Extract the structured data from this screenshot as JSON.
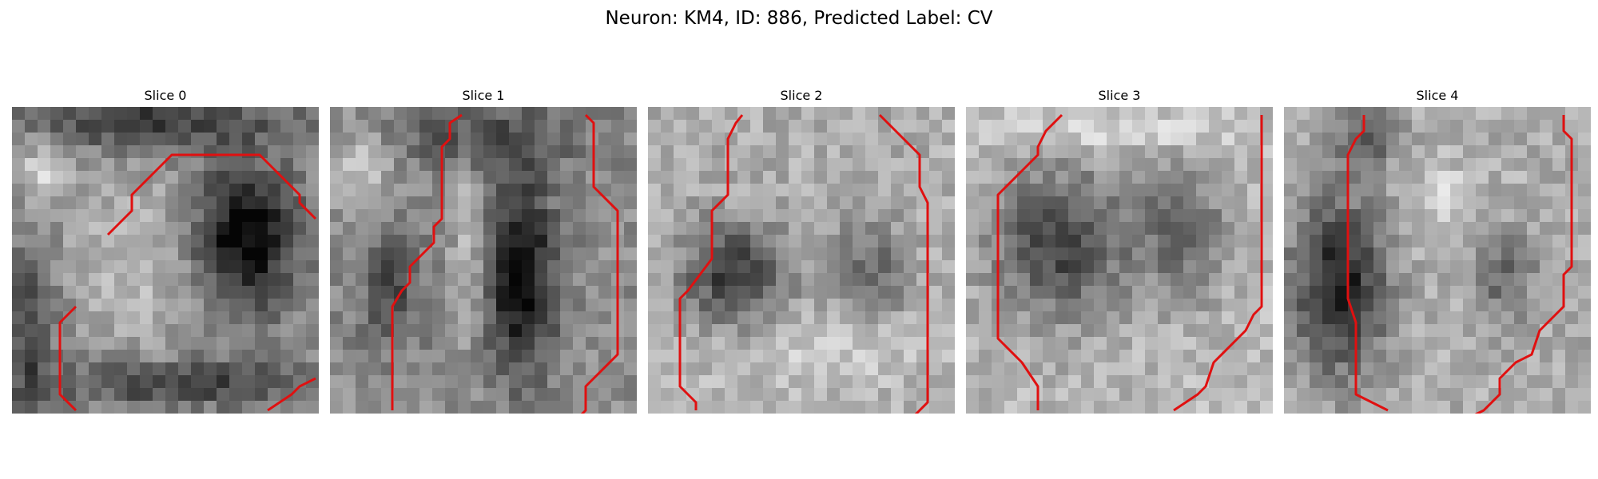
{
  "figure": {
    "title": "Neuron: KM4, ID: 886, Predicted Label: CV"
  },
  "overlay_color": "#e01010",
  "slices": [
    {
      "title": "Slice 0"
    },
    {
      "title": "Slice 1"
    },
    {
      "title": "Slice 2"
    },
    {
      "title": "Slice 3"
    },
    {
      "title": "Slice 4"
    }
  ]
}
